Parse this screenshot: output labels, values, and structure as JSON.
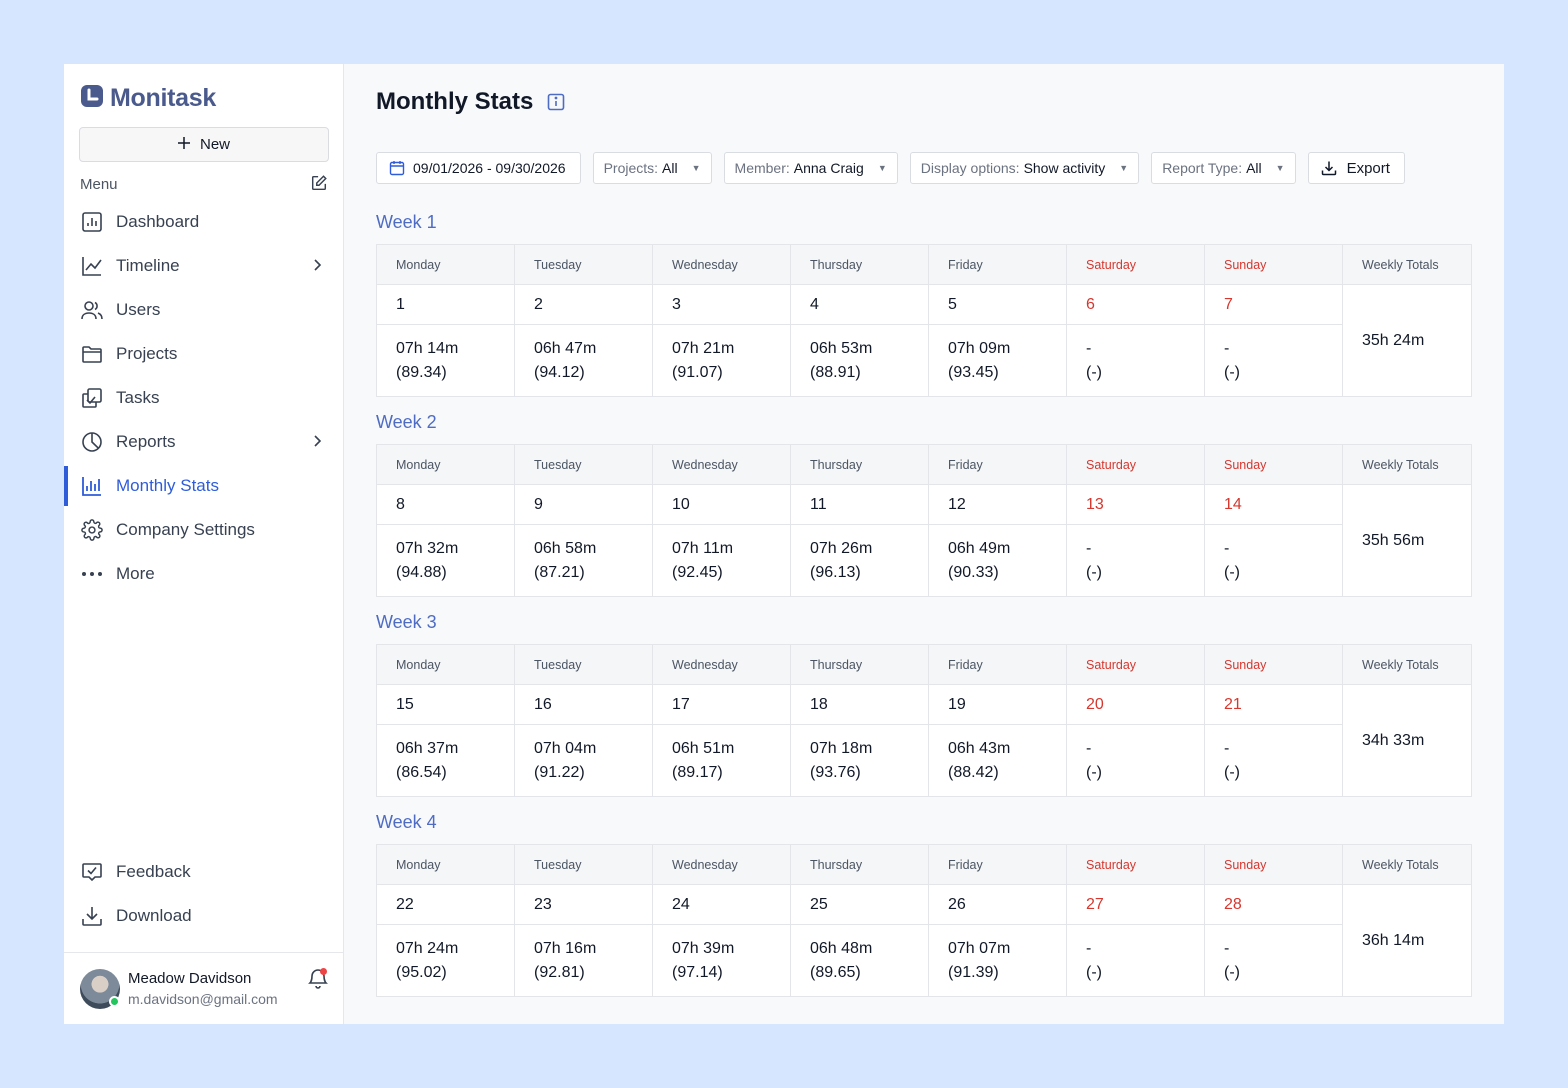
{
  "app": {
    "name": "Monitask"
  },
  "sidebar": {
    "new_label": "New",
    "menu_label": "Menu",
    "items": [
      {
        "label": "Dashboard",
        "icon": "dashboard-icon"
      },
      {
        "label": "Timeline",
        "icon": "timeline-icon",
        "chevron": true
      },
      {
        "label": "Users",
        "icon": "users-icon"
      },
      {
        "label": "Projects",
        "icon": "folder-icon"
      },
      {
        "label": "Tasks",
        "icon": "tasks-icon"
      },
      {
        "label": "Reports",
        "icon": "pie-chart-icon",
        "chevron": true
      },
      {
        "label": "Monthly Stats",
        "icon": "bar-chart-icon",
        "active": true
      },
      {
        "label": "Company Settings",
        "icon": "gear-icon"
      },
      {
        "label": "More",
        "icon": "more-dots-icon"
      }
    ],
    "bottom_items": [
      {
        "label": "Feedback",
        "icon": "feedback-icon"
      },
      {
        "label": "Download",
        "icon": "download-icon"
      }
    ],
    "user": {
      "name": "Meadow Davidson",
      "email": "m.davidson@gmail.com"
    }
  },
  "main": {
    "title": "Monthly Stats",
    "filters": {
      "date_range": "09/01/2026 - 09/30/2026",
      "projects_label": "Projects:",
      "projects_value": "All",
      "member_label": "Member:",
      "member_value": "Anna Craig",
      "display_label": "Display options:",
      "display_value": "Show activity",
      "report_label": "Report Type:",
      "report_value": "All",
      "export_label": "Export"
    },
    "headers": [
      "Monday",
      "Tuesday",
      "Wednesday",
      "Thursday",
      "Friday",
      "Saturday",
      "Sunday",
      "Weekly Totals"
    ],
    "weeks": [
      {
        "title": "Week 1",
        "days": [
          "1",
          "2",
          "3",
          "4",
          "5",
          "6",
          "7"
        ],
        "times": [
          "07h 14m",
          "06h 47m",
          "07h 21m",
          "06h 53m",
          "07h 09m",
          "-",
          "-"
        ],
        "scores": [
          "(89.34)",
          "(94.12)",
          "(91.07)",
          "(88.91)",
          "(93.45)",
          "(-)",
          "(-)"
        ],
        "total": "35h 24m"
      },
      {
        "title": "Week 2",
        "days": [
          "8",
          "9",
          "10",
          "11",
          "12",
          "13",
          "14"
        ],
        "times": [
          "07h 32m",
          "06h 58m",
          "07h 11m",
          "07h 26m",
          "06h 49m",
          "-",
          "-"
        ],
        "scores": [
          "(94.88)",
          "(87.21)",
          "(92.45)",
          "(96.13)",
          "(90.33)",
          "(-)",
          "(-)"
        ],
        "total": "35h 56m"
      },
      {
        "title": "Week 3",
        "days": [
          "15",
          "16",
          "17",
          "18",
          "19",
          "20",
          "21"
        ],
        "times": [
          "06h 37m",
          "07h 04m",
          "06h 51m",
          "07h 18m",
          "06h 43m",
          "-",
          "-"
        ],
        "scores": [
          "(86.54)",
          "(91.22)",
          "(89.17)",
          "(93.76)",
          "(88.42)",
          "(-)",
          "(-)"
        ],
        "total": "34h 33m"
      },
      {
        "title": "Week 4",
        "days": [
          "22",
          "23",
          "24",
          "25",
          "26",
          "27",
          "28"
        ],
        "times": [
          "07h 24m",
          "07h 16m",
          "07h 39m",
          "06h 48m",
          "07h 07m",
          "-",
          "-"
        ],
        "scores": [
          "(95.02)",
          "(92.81)",
          "(97.14)",
          "(89.65)",
          "(91.39)",
          "(-)",
          "(-)"
        ],
        "total": "36h 14m"
      }
    ]
  },
  "colors": {
    "accent": "#2f5cd9",
    "weekend": "#d6372e",
    "week_title": "#4e6cc4",
    "logo": "#4a5a8c"
  }
}
